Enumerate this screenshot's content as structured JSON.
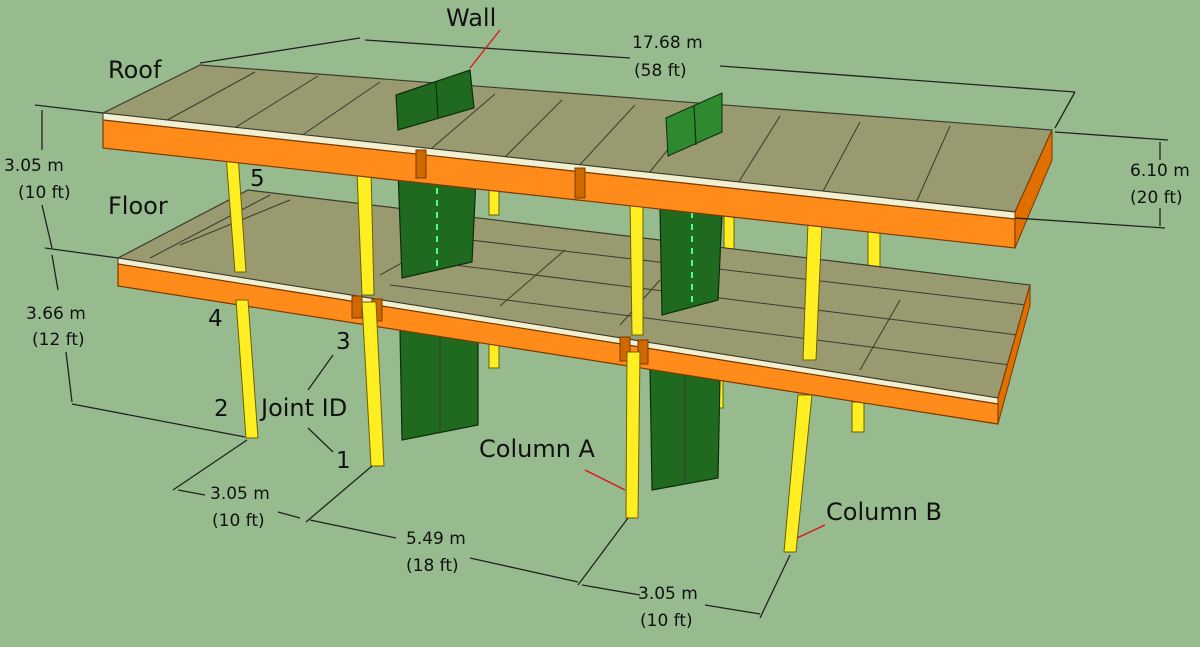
{
  "labels": {
    "wall": "Wall",
    "roof": "Roof",
    "floor": "Floor",
    "joint_id": "Joint ID",
    "column_a": "Column A",
    "column_b": "Column B"
  },
  "joints": [
    "1",
    "2",
    "3",
    "4",
    "5"
  ],
  "dimensions": {
    "length_m": "17.68 m",
    "length_ft": "(58 ft)",
    "width_m": "6.10 m",
    "width_ft": "(20 ft)",
    "roof_height_m": "3.05 m",
    "roof_height_ft": "(10 ft)",
    "floor_height_m": "3.66 m",
    "floor_height_ft": "(12 ft)",
    "bay1_m": "3.05 m",
    "bay1_ft": "(10 ft)",
    "bay2_m": "5.49 m",
    "bay2_ft": "(18 ft)",
    "bay3_m": "3.05 m",
    "bay3_ft": "(10 ft)"
  },
  "colors": {
    "background": "#97bb8f",
    "beam": "#ff8c1a",
    "deck": "#9a9a70",
    "column": "#ffee22",
    "wall": "#1f6a1f",
    "leader": "#d11111"
  }
}
